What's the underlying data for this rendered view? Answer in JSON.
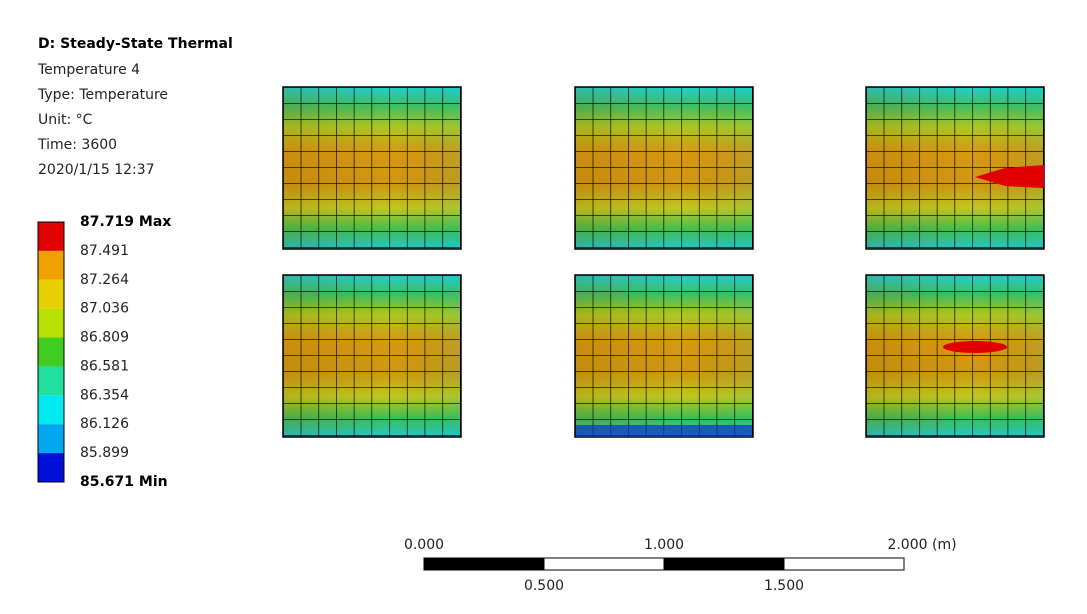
{
  "header": {
    "title": "D: Steady-State Thermal",
    "lines": [
      "Temperature 4",
      "Type: Temperature",
      "Unit: °C",
      "Time: 3600",
      "2020/1/15 12:37"
    ]
  },
  "legend": {
    "labels": [
      "87.719 Max",
      "87.491",
      "87.264",
      "87.036",
      "86.809",
      "86.581",
      "86.354",
      "86.126",
      "85.899",
      "85.671 Min"
    ],
    "colors": [
      "#e00000",
      "#f0a000",
      "#e8d000",
      "#b8e000",
      "#40cc20",
      "#20e0a0",
      "#00e8f0",
      "#00a8f0",
      "#0010d8"
    ]
  },
  "scale_bar": {
    "top_labels": [
      "0.000",
      "1.000",
      "2.000 (m)"
    ],
    "bottom_labels": [
      "0.500",
      "1.500"
    ]
  }
}
